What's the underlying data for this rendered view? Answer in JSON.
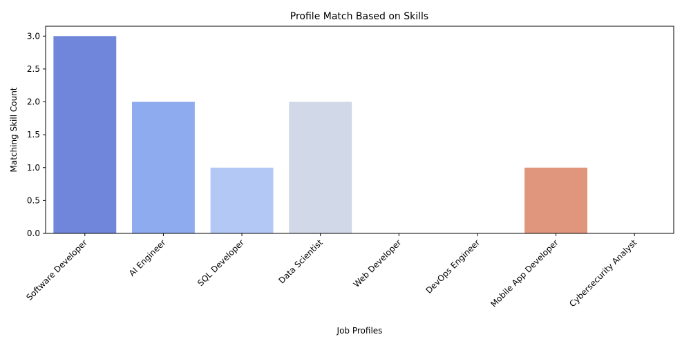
{
  "chart_data": {
    "type": "bar",
    "title": "Profile Match Based on Skills",
    "xlabel": "Job Profiles",
    "ylabel": "Matching Skill Count",
    "ylim": [
      0,
      3.15
    ],
    "yticks": [
      "0.0",
      "0.5",
      "1.0",
      "1.5",
      "2.0",
      "2.5",
      "3.0"
    ],
    "grid": false,
    "categories": [
      "Software Developer",
      "AI Engineer",
      "SQL Developer",
      "Data Scientist",
      "Web Developer",
      "DevOps Engineer",
      "Mobile App Developer",
      "Cybersecurity Analyst"
    ],
    "values": [
      3,
      2,
      1,
      2,
      0,
      0,
      1,
      0
    ],
    "colors": [
      "#6f86db",
      "#8fabef",
      "#b4c8f5",
      "#d1d9e8",
      "#ead5ca",
      "#f3b89f",
      "#e0967d",
      "#c95f50"
    ]
  }
}
